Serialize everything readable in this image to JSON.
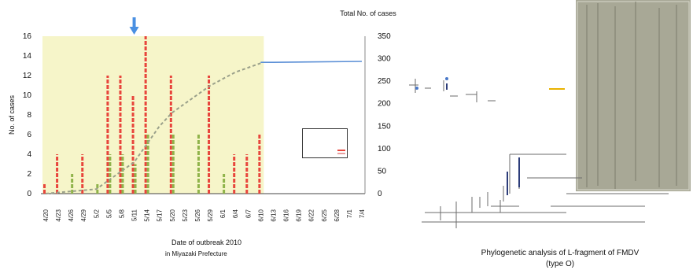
{
  "slide": {
    "faded_heading": "",
    "caption_line1": "Phylogenetic analysis of L-fragment of FMDV",
    "caption_line2": "(type O)",
    "red_note_lines": [
      "",
      "",
      "",
      ""
    ]
  },
  "chart_data": {
    "type": "bar+line",
    "title": "",
    "xlabel_line1": "Date of outbreak  2010",
    "xlabel_line2": "in Miyazaki Prefecture",
    "ylabel_left": "No. of cases",
    "ylabel_right": "Total No. of cases",
    "ylim_left": [
      0,
      16
    ],
    "ylim_right": [
      0,
      350
    ],
    "yticks_left": [
      0,
      2,
      4,
      6,
      8,
      10,
      12,
      14,
      16
    ],
    "yticks_right": [
      0,
      50,
      100,
      150,
      200,
      250,
      300,
      350
    ],
    "grid": false,
    "legend_position": "right-middle",
    "categories": [
      "4/20",
      "4/23",
      "4/26",
      "4/29",
      "5/2",
      "5/5",
      "5/8",
      "5/11",
      "5/14",
      "5/17",
      "5/20",
      "5/23",
      "5/26",
      "5/29",
      "6/1",
      "6/4",
      "6/7",
      "6/10",
      "6/13",
      "6/16",
      "6/19",
      "6/22",
      "6/25",
      "6/28",
      "7/1",
      "7/4"
    ],
    "series": [
      {
        "name": "",
        "kind": "bar",
        "color": "#e8453c",
        "points": [
          {
            "category": "4/20",
            "value": 1
          },
          {
            "category": "4/23",
            "value": 4
          },
          {
            "category": "4/29",
            "value": 4
          },
          {
            "category": "5/5",
            "value": 12
          },
          {
            "category": "5/8",
            "value": 12
          },
          {
            "category": "5/11",
            "value": 10
          },
          {
            "category": "5/14",
            "value": 16
          },
          {
            "category": "5/20",
            "value": 12
          },
          {
            "category": "5/29",
            "value": 12
          },
          {
            "category": "6/4",
            "value": 4
          },
          {
            "category": "6/7",
            "value": 4
          },
          {
            "category": "6/10",
            "value": 6
          }
        ]
      },
      {
        "name": "",
        "kind": "bar",
        "color": "#8fb34a",
        "points": [
          {
            "category": "4/26",
            "value": 2
          },
          {
            "category": "5/2",
            "value": 1
          },
          {
            "category": "5/5",
            "value": 4
          },
          {
            "category": "5/8",
            "value": 4
          },
          {
            "category": "5/11",
            "value": 3
          },
          {
            "category": "5/14",
            "value": 6
          },
          {
            "category": "5/20",
            "value": 6
          },
          {
            "category": "5/26",
            "value": 6
          },
          {
            "category": "6/1",
            "value": 2
          }
        ]
      },
      {
        "name": "",
        "kind": "line",
        "axis": "right",
        "color": "#9aa08a",
        "points": [
          {
            "category": "4/20",
            "value": 0
          },
          {
            "category": "4/26",
            "value": 5
          },
          {
            "category": "5/2",
            "value": 10
          },
          {
            "category": "5/5",
            "value": 30
          },
          {
            "category": "5/11",
            "value": 70
          },
          {
            "category": "5/14",
            "value": 110
          },
          {
            "category": "5/17",
            "value": 150
          },
          {
            "category": "5/20",
            "value": 180
          },
          {
            "category": "5/23",
            "value": 200
          },
          {
            "category": "5/26",
            "value": 220
          },
          {
            "category": "5/29",
            "value": 240
          },
          {
            "category": "6/1",
            "value": 255
          },
          {
            "category": "6/4",
            "value": 270
          },
          {
            "category": "6/7",
            "value": 280
          },
          {
            "category": "6/10",
            "value": 290
          }
        ]
      },
      {
        "name": "",
        "kind": "line",
        "axis": "right",
        "color": "#5b8fd6",
        "points": [
          {
            "category": "6/10",
            "value": 292
          },
          {
            "category": "6/13",
            "value": 292
          },
          {
            "category": "7/4",
            "value": 294
          }
        ]
      }
    ],
    "highlight_range": {
      "from": "4/20",
      "to": "6/10",
      "color": "#f6f5c9"
    },
    "marker_arrow": {
      "category": "5/11",
      "color": "#4a90e2"
    }
  },
  "legend": {
    "items": [
      {
        "label": "",
        "color": "#e8453c"
      },
      {
        "label": "",
        "color": "#8fb34a"
      }
    ]
  }
}
